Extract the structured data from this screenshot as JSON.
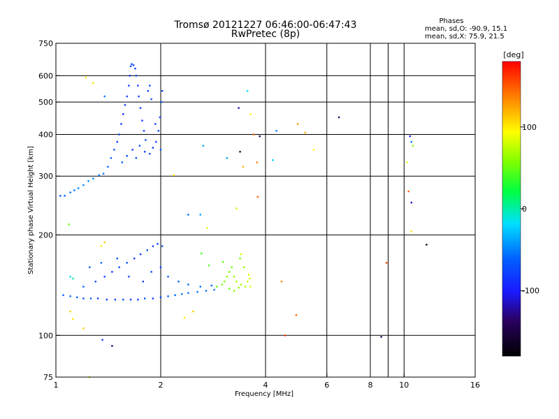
{
  "chart_data": {
    "type": "scatter",
    "title": "Tromsø 20121227 06:46:00-06:47:43",
    "subtitle": "RwPretec (8p)",
    "xlabel": "Frequency [MHz]",
    "ylabel": "Stationary phase Virtual Height [km]",
    "x_scale": "log",
    "y_scale": "log",
    "xlim": [
      1,
      16
    ],
    "ylim": [
      75,
      750
    ],
    "x_ticks": [
      1,
      2,
      4,
      6,
      8,
      10,
      16
    ],
    "x_tick_labels": [
      "1",
      "2",
      "4",
      "6",
      "8",
      "10",
      "16"
    ],
    "y_ticks": [
      75,
      100,
      200,
      300,
      400,
      500,
      600,
      750
    ],
    "y_tick_labels": [
      "75",
      "100",
      "200",
      "300",
      "400",
      "500",
      "600",
      "750"
    ],
    "x_gridlines": [
      2,
      4,
      6,
      8,
      9,
      10
    ],
    "y_gridlines": [
      100,
      200,
      300,
      400,
      500,
      600
    ],
    "grid": true,
    "stats": {
      "heading": "Phases",
      "line_o": "mean, sd,O: -90.9, 15.1",
      "line_x": "mean, sd,X:  75.9, 21.5"
    },
    "colorbar": {
      "unit": "[deg]",
      "range": [
        -180,
        180
      ],
      "ticks": [
        100,
        0,
        -100
      ],
      "tick_labels": [
        "100",
        "0",
        "-100"
      ]
    },
    "series": [
      {
        "points": [
          [
            1.03,
            262,
            -115
          ],
          [
            1.06,
            262,
            -110
          ],
          [
            1.1,
            268,
            -100
          ],
          [
            1.13,
            272,
            -90
          ],
          [
            1.16,
            276,
            -85
          ],
          [
            1.2,
            282,
            -80
          ],
          [
            1.24,
            290,
            -82
          ],
          [
            1.28,
            295,
            -78
          ],
          [
            1.33,
            302,
            -85
          ],
          [
            1.37,
            305,
            -90
          ],
          [
            1.41,
            320,
            -105
          ],
          [
            1.44,
            340,
            -110
          ],
          [
            1.47,
            360,
            -115
          ],
          [
            1.5,
            380,
            -120
          ],
          [
            1.52,
            400,
            -118
          ],
          [
            1.54,
            430,
            -120
          ],
          [
            1.56,
            460,
            -125
          ],
          [
            1.58,
            490,
            -120
          ],
          [
            1.6,
            520,
            -118
          ],
          [
            1.62,
            560,
            -120
          ],
          [
            1.63,
            600,
            -122
          ],
          [
            1.64,
            640,
            -118
          ],
          [
            1.65,
            650,
            -115
          ],
          [
            1.67,
            645,
            -120
          ],
          [
            1.69,
            630,
            -118
          ],
          [
            1.7,
            600,
            -115
          ],
          [
            1.72,
            560,
            -120
          ],
          [
            1.73,
            520,
            -118
          ],
          [
            1.75,
            480,
            -120
          ],
          [
            1.77,
            440,
            -122
          ],
          [
            1.79,
            410,
            -118
          ],
          [
            1.81,
            385,
            -115
          ],
          [
            1.55,
            330,
            -110
          ],
          [
            1.6,
            345,
            -115
          ],
          [
            1.66,
            360,
            -120
          ],
          [
            1.7,
            340,
            -118
          ],
          [
            1.74,
            370,
            -115
          ],
          [
            1.8,
            355,
            -120
          ],
          [
            1.86,
            350,
            -118
          ],
          [
            1.9,
            365,
            -122
          ],
          [
            1.94,
            380,
            -120
          ],
          [
            1.97,
            410,
            -118
          ],
          [
            1.99,
            450,
            -120
          ],
          [
            2.01,
            500,
            -115
          ],
          [
            2.02,
            540,
            -118
          ],
          [
            1.84,
            540,
            -120
          ],
          [
            1.86,
            560,
            -118
          ],
          [
            1.88,
            510,
            -115
          ],
          [
            1.93,
            430,
            -120
          ],
          [
            2.0,
            360,
            -110
          ],
          [
            1.05,
            132,
            -110
          ],
          [
            1.1,
            131,
            -105
          ],
          [
            1.15,
            130,
            -110
          ],
          [
            1.2,
            129,
            -115
          ],
          [
            1.26,
            129,
            -112
          ],
          [
            1.32,
            129,
            -118
          ],
          [
            1.4,
            128,
            -120
          ],
          [
            1.48,
            128,
            -118
          ],
          [
            1.56,
            128,
            -115
          ],
          [
            1.64,
            128,
            -120
          ],
          [
            1.72,
            128,
            -118
          ],
          [
            1.8,
            129,
            -115
          ],
          [
            1.9,
            129,
            -120
          ],
          [
            2.0,
            130,
            -118
          ],
          [
            2.1,
            131,
            -112
          ],
          [
            2.2,
            132,
            -110
          ],
          [
            2.3,
            133,
            -105
          ],
          [
            2.4,
            134,
            -100
          ],
          [
            2.55,
            135,
            -98
          ],
          [
            2.7,
            136,
            -95
          ],
          [
            2.85,
            137,
            -90
          ],
          [
            1.2,
            140,
            -110
          ],
          [
            1.3,
            145,
            -115
          ],
          [
            1.38,
            150,
            -118
          ],
          [
            1.45,
            155,
            -120
          ],
          [
            1.52,
            160,
            -118
          ],
          [
            1.6,
            165,
            -115
          ],
          [
            1.68,
            170,
            -120
          ],
          [
            1.75,
            175,
            -118
          ],
          [
            1.83,
            180,
            -115
          ],
          [
            1.9,
            185,
            -120
          ],
          [
            1.96,
            188,
            -118
          ],
          [
            2.02,
            185,
            -115
          ],
          [
            1.25,
            160,
            -112
          ],
          [
            1.35,
            165,
            -110
          ],
          [
            1.5,
            170,
            -115
          ],
          [
            1.62,
            150,
            -118
          ],
          [
            1.78,
            145,
            -120
          ],
          [
            1.88,
            155,
            -118
          ],
          [
            2.0,
            160,
            -115
          ],
          [
            2.1,
            150,
            -112
          ],
          [
            2.25,
            145,
            -110
          ],
          [
            2.4,
            142,
            -105
          ],
          [
            2.6,
            140,
            -100
          ],
          [
            2.8,
            141,
            -95
          ],
          [
            2.9,
            140,
            30
          ],
          [
            3.0,
            142,
            35
          ],
          [
            3.05,
            145,
            40
          ],
          [
            3.1,
            150,
            45
          ],
          [
            3.15,
            155,
            40
          ],
          [
            3.2,
            160,
            35
          ],
          [
            3.25,
            150,
            45
          ],
          [
            3.3,
            145,
            50
          ],
          [
            3.4,
            142,
            55
          ],
          [
            3.5,
            140,
            60
          ],
          [
            3.55,
            145,
            70
          ],
          [
            3.6,
            148,
            75
          ],
          [
            3.15,
            138,
            35
          ],
          [
            3.25,
            136,
            40
          ],
          [
            3.35,
            139,
            45
          ],
          [
            2.75,
            162,
            25
          ],
          [
            2.62,
            176,
            20
          ],
          [
            3.02,
            166,
            30
          ],
          [
            3.38,
            170,
            35
          ],
          [
            3.47,
            160,
            50
          ],
          [
            3.58,
            152,
            70
          ],
          [
            3.62,
            140,
            80
          ],
          [
            1.22,
            592,
            95
          ],
          [
            1.28,
            570,
            100
          ],
          [
            1.38,
            520,
            -90
          ],
          [
            2.18,
            302,
            100
          ],
          [
            2.4,
            230,
            -100
          ],
          [
            2.6,
            230,
            -70
          ],
          [
            2.65,
            370,
            -60
          ],
          [
            2.72,
            210,
            80
          ],
          [
            3.1,
            340,
            -60
          ],
          [
            3.3,
            240,
            65
          ],
          [
            3.35,
            480,
            -140
          ],
          [
            3.38,
            355,
            -160
          ],
          [
            3.4,
            175,
            75
          ],
          [
            3.45,
            320,
            120
          ],
          [
            3.55,
            540,
            -20
          ],
          [
            3.62,
            460,
            90
          ],
          [
            3.7,
            400,
            150
          ],
          [
            3.78,
            330,
            140
          ],
          [
            3.8,
            260,
            150
          ],
          [
            3.85,
            395,
            -150
          ],
          [
            4.2,
            335,
            -40
          ],
          [
            4.3,
            410,
            -90
          ],
          [
            4.45,
            145,
            140
          ],
          [
            4.55,
            100,
            160
          ],
          [
            4.9,
            115,
            150
          ],
          [
            4.95,
            430,
            130
          ],
          [
            5.2,
            405,
            120
          ],
          [
            5.5,
            360,
            90
          ],
          [
            6.5,
            450,
            -150
          ],
          [
            8.6,
            99,
            -150
          ],
          [
            8.9,
            165,
            160
          ],
          [
            10.4,
            395,
            -130
          ],
          [
            10.5,
            380,
            -90
          ],
          [
            10.6,
            370,
            40
          ],
          [
            10.2,
            330,
            80
          ],
          [
            10.3,
            270,
            150
          ],
          [
            10.5,
            250,
            -140
          ],
          [
            10.5,
            205,
            100
          ],
          [
            11.6,
            187,
            -170
          ],
          [
            1.09,
            215,
            30
          ],
          [
            1.1,
            118,
            110
          ],
          [
            1.12,
            112,
            100
          ],
          [
            1.2,
            105,
            110
          ],
          [
            1.25,
            75,
            60
          ],
          [
            1.36,
            97,
            -120
          ],
          [
            1.45,
            93,
            -150
          ],
          [
            1.1,
            150,
            -20
          ],
          [
            1.12,
            148,
            -10
          ],
          [
            1.35,
            185,
            100
          ],
          [
            1.38,
            190,
            110
          ],
          [
            2.34,
            113,
            100
          ],
          [
            2.48,
            118,
            110
          ]
        ]
      }
    ]
  }
}
